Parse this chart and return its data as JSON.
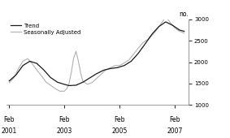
{
  "ylabel": "no.",
  "ylim": [
    1000,
    3000
  ],
  "yticks": [
    1000,
    1500,
    2000,
    2500,
    3000
  ],
  "xlim_start": 2001.0,
  "xlim_end": 2007.58,
  "xtick_positions": [
    2001.083,
    2003.083,
    2005.083,
    2007.083
  ],
  "xtick_labels_line1": [
    "Feb",
    "Feb",
    "Feb",
    "Feb"
  ],
  "xtick_labels_line2": [
    "2001",
    "2003",
    "2005",
    "2007"
  ],
  "trend_color": "#1a1a1a",
  "seasonal_color": "#b0b0b0",
  "trend_linewidth": 0.9,
  "seasonal_linewidth": 0.8,
  "background_color": "#ffffff",
  "legend_items": [
    "Trend",
    "Seasonally Adjusted"
  ],
  "trend_x": [
    2001.083,
    2001.33,
    2001.58,
    2001.83,
    2002.08,
    2002.33,
    2002.58,
    2002.83,
    2003.08,
    2003.25,
    2003.5,
    2003.75,
    2004.0,
    2004.25,
    2004.5,
    2004.75,
    2005.0,
    2005.25,
    2005.5,
    2005.75,
    2006.0,
    2006.25,
    2006.5,
    2006.75,
    2007.0,
    2007.25,
    2007.42
  ],
  "trend_y": [
    1560,
    1700,
    1920,
    2020,
    1970,
    1820,
    1640,
    1530,
    1480,
    1450,
    1460,
    1530,
    1630,
    1730,
    1810,
    1850,
    1870,
    1920,
    2020,
    2200,
    2420,
    2650,
    2830,
    2940,
    2860,
    2750,
    2720
  ],
  "seasonal_x": [
    2001.083,
    2001.25,
    2001.42,
    2001.58,
    2001.75,
    2001.92,
    2002.08,
    2002.25,
    2002.42,
    2002.58,
    2002.75,
    2002.92,
    2003.08,
    2003.17,
    2003.25,
    2003.33,
    2003.42,
    2003.5,
    2003.58,
    2003.67,
    2003.75,
    2003.92,
    2004.08,
    2004.25,
    2004.42,
    2004.58,
    2004.75,
    2004.92,
    2005.08,
    2005.25,
    2005.42,
    2005.58,
    2005.75,
    2005.92,
    2006.08,
    2006.17,
    2006.25,
    2006.33,
    2006.42,
    2006.5,
    2006.58,
    2006.67,
    2006.75,
    2006.92,
    2007.08,
    2007.25,
    2007.42
  ],
  "seasonal_y": [
    1520,
    1630,
    1850,
    2020,
    2080,
    1960,
    1820,
    1680,
    1530,
    1460,
    1380,
    1320,
    1320,
    1380,
    1500,
    1750,
    2100,
    2250,
    2050,
    1750,
    1550,
    1480,
    1520,
    1620,
    1720,
    1820,
    1870,
    1920,
    1920,
    1980,
    2050,
    2180,
    2320,
    2450,
    2520,
    2560,
    2620,
    2680,
    2750,
    2820,
    2900,
    2980,
    3060,
    2920,
    2800,
    2720,
    2680
  ]
}
